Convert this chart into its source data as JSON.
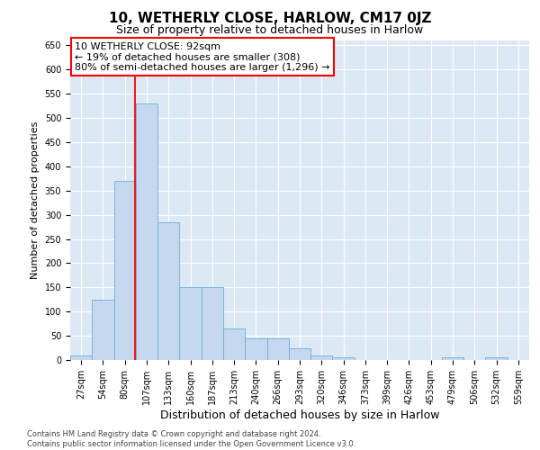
{
  "title": "10, WETHERLY CLOSE, HARLOW, CM17 0JZ",
  "subtitle": "Size of property relative to detached houses in Harlow",
  "xlabel": "Distribution of detached houses by size in Harlow",
  "ylabel": "Number of detached properties",
  "categories": [
    "27sqm",
    "54sqm",
    "80sqm",
    "107sqm",
    "133sqm",
    "160sqm",
    "187sqm",
    "213sqm",
    "240sqm",
    "266sqm",
    "293sqm",
    "320sqm",
    "346sqm",
    "373sqm",
    "399sqm",
    "426sqm",
    "453sqm",
    "479sqm",
    "506sqm",
    "532sqm",
    "559sqm"
  ],
  "values": [
    10,
    125,
    370,
    530,
    285,
    150,
    150,
    65,
    45,
    45,
    25,
    10,
    5,
    0,
    0,
    0,
    0,
    5,
    0,
    5,
    0
  ],
  "bar_color": "#c5d8ef",
  "bar_edge_color": "#6baed6",
  "vline_color": "red",
  "annotation_text": "10 WETHERLY CLOSE: 92sqm\n← 19% of detached houses are smaller (308)\n80% of semi-detached houses are larger (1,296) →",
  "annotation_box_color": "white",
  "annotation_box_edge": "red",
  "ylim": [
    0,
    660
  ],
  "yticks": [
    0,
    50,
    100,
    150,
    200,
    250,
    300,
    350,
    400,
    450,
    500,
    550,
    600,
    650
  ],
  "background_color": "#dce9f5",
  "footer_line1": "Contains HM Land Registry data © Crown copyright and database right 2024.",
  "footer_line2": "Contains public sector information licensed under the Open Government Licence v3.0.",
  "title_fontsize": 11,
  "subtitle_fontsize": 9,
  "xlabel_fontsize": 9,
  "ylabel_fontsize": 8,
  "annotation_fontsize": 8,
  "tick_fontsize": 7
}
